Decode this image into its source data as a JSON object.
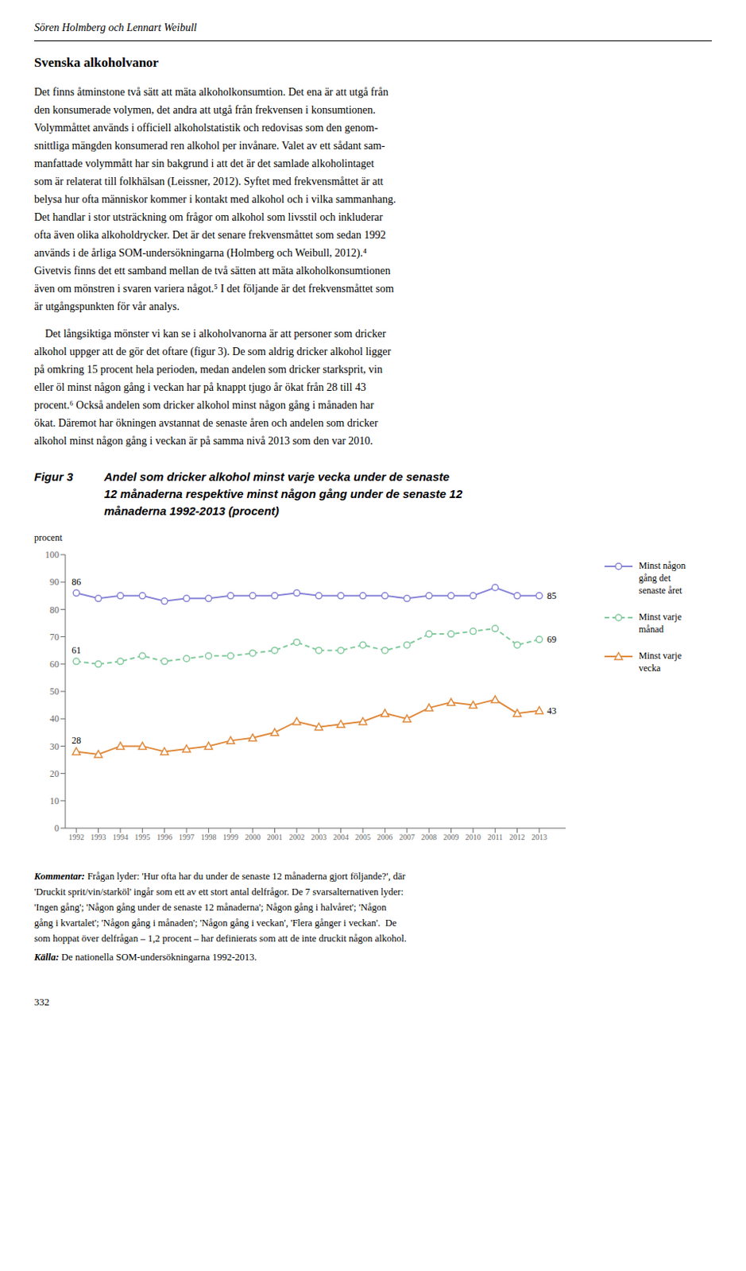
{
  "header": "Sören Holmberg och Lennart Weibull",
  "section_title": "Svenska alkoholvanor",
  "body": [
    [
      "Det finns åtminstone två sätt att mäta alkoholkonsumtion. Det ena är att utgå från",
      "den konsumerade volymen, det andra att utgå från frekvensen i konsumtionen.",
      "Volymmåttet används i officiell alkoholstatistik och redovisas som den genom-",
      "snittliga mängden konsumerad ren alkohol per invånare. Valet av ett sådant sam-",
      "manfattade volymmått har sin bakgrund i att det är det samlade alkoholintaget",
      "som är relaterat till folkhälsan (Leissner, 2012). Syftet med frekvensmåttet är att",
      "belysa hur ofta människor kommer i kontakt med alkohol och i vilka sammanhang.",
      "Det handlar i stor utsträckning om frågor om alkohol som livsstil och inkluderar",
      "ofta även olika alkoholdrycker. Det är det senare frekvensmåttet som sedan 1992",
      "används i de årliga SOM-undersökningarna (Holmberg och Weibull, 2012).⁴",
      "Givetvis finns det ett samband mellan de två sätten att mäta alkoholkonsumtionen",
      "även om mönstren i svaren variera något.⁵ I det följande är det frekvensmåttet som",
      "är utgångspunkten för vår analys."
    ],
    [
      "    Det långsiktiga mönster vi kan se i alkoholvanorna är att personer som dricker",
      "alkohol uppger att de gör det oftare (figur 3). De som aldrig dricker alkohol ligger",
      "på omkring 15 procent hela perioden, medan andelen som dricker starksprit, vin",
      "eller öl minst någon gång i veckan har på knappt tjugo år ökat från 28 till 43",
      "procent.⁶ Också andelen som dricker alkohol minst någon gång i månaden har",
      "ökat. Däremot har ökningen avstannat de senaste åren och andelen som dricker",
      "alkohol minst någon gång i veckan är på samma nivå 2013 som den var 2010."
    ]
  ],
  "figure_label": "Figur 3",
  "comment_label": "Kommentar:",
  "comment": [
    "Frågan lyder: 'Hur ofta har du under de senaste 12 månaderna gjort följande?', där",
    "'Druckit sprit/vin/starköl' ingår som ett av ett stort antal delfrågor. De 7 svarsalternativen lyder:",
    "'Ingen gång'; 'Någon gång under de senaste 12 månaderna'; Någon gång i halvåret'; 'Någon",
    "gång i kvartalet'; 'Någon gång i månaden'; 'Någon gång i veckan', 'Flera gånger i veckan'.  De",
    "som hoppat över delfrågan – 1,2 procent – har definierats som att de inte druckit någon alkohol."
  ],
  "source_label": "Källa:",
  "source": "De nationella SOM-undersökningarna 1992-2013.",
  "page_number": "332",
  "chart_data": {
    "type": "line",
    "title": "Andel som dricker alkohol minst varje vecka under de senaste\n12 månaderna respektive minst någon gång under de senaste 12\nmånaderna 1992-2013 (procent)",
    "ylabel": "procent",
    "x": [
      1992,
      1993,
      1994,
      1995,
      1996,
      1997,
      1998,
      1999,
      2000,
      2001,
      2002,
      2003,
      2004,
      2005,
      2006,
      2007,
      2008,
      2009,
      2010,
      2011,
      2012,
      2013
    ],
    "series": [
      {
        "name": "Minst någon\ngång det\nsenaste året",
        "color": "#8884d8",
        "marker": "circle",
        "line_style": "solid",
        "values": [
          86,
          84,
          85,
          85,
          83,
          84,
          84,
          85,
          85,
          85,
          86,
          85,
          85,
          85,
          85,
          84,
          85,
          85,
          85,
          88,
          85,
          85
        ]
      },
      {
        "name": "Minst varje\nmånad",
        "color": "#82ca9d",
        "marker": "circle",
        "line_style": "dashed",
        "values": [
          61,
          60,
          61,
          63,
          61,
          62,
          63,
          63,
          64,
          65,
          68,
          65,
          65,
          67,
          65,
          67,
          71,
          71,
          72,
          73,
          67,
          69
        ]
      },
      {
        "name": "Minst varje\nvecka",
        "color": "#e08a3c",
        "marker": "triangle",
        "line_style": "solid",
        "values": [
          28,
          27,
          30,
          30,
          28,
          29,
          30,
          32,
          33,
          35,
          39,
          37,
          38,
          39,
          42,
          40,
          44,
          46,
          45,
          47,
          42,
          43
        ]
      }
    ],
    "xlim": [
      1991.5,
      2014.2
    ],
    "xticks": [
      1992,
      1993,
      1994,
      1995,
      1996,
      1997,
      1998,
      1999,
      2000,
      2001,
      2002,
      2003,
      2004,
      2005,
      2006,
      2007,
      2008,
      2009,
      2010,
      2011,
      2012,
      2013
    ],
    "ylim": [
      0,
      100
    ],
    "yticks": [
      0,
      10,
      20,
      30,
      40,
      50,
      60,
      70,
      80,
      90,
      100
    ],
    "grid": false,
    "annotations": [
      {
        "text": "86",
        "x": 1992,
        "y": 86
      },
      {
        "text": "61",
        "x": 1992,
        "y": 61
      },
      {
        "text": "28",
        "x": 1992,
        "y": 28
      },
      {
        "text": "85",
        "x": 2013,
        "y": 85
      },
      {
        "text": "69",
        "x": 2013,
        "y": 69
      },
      {
        "text": "43",
        "x": 2013,
        "y": 43
      }
    ]
  }
}
